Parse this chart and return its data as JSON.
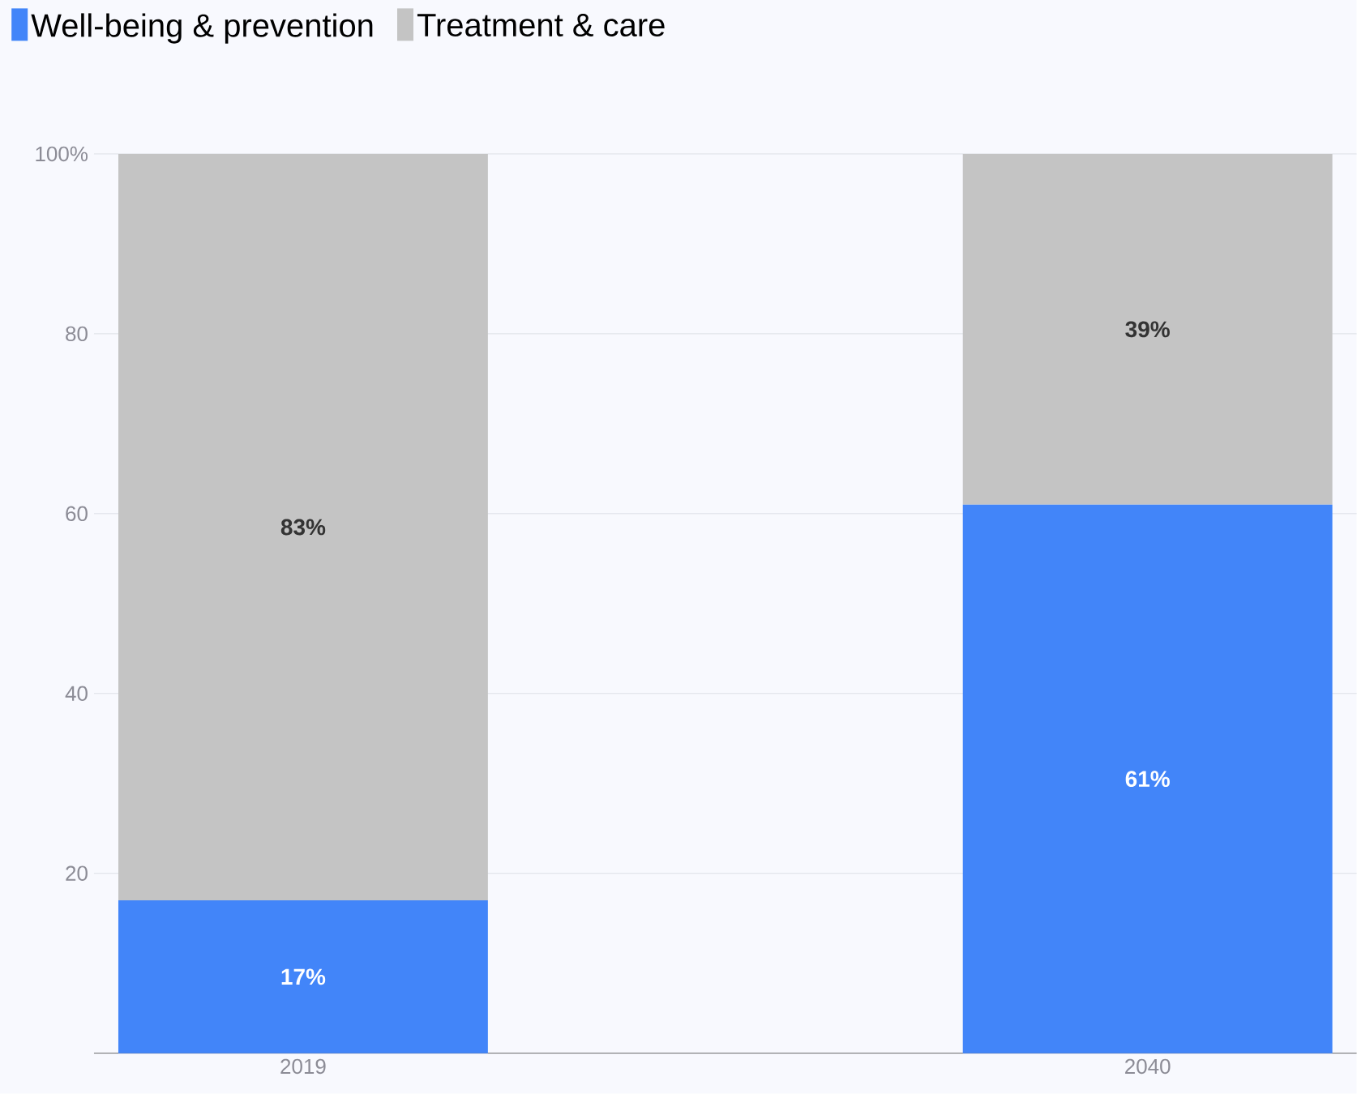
{
  "chart_data": {
    "type": "bar",
    "stacked": true,
    "categories": [
      "2019",
      "2040"
    ],
    "series": [
      {
        "name": "Well-being & prevention",
        "color": "#4285f9",
        "values": [
          17,
          61
        ],
        "value_labels": [
          "17%",
          "61%"
        ]
      },
      {
        "name": "Treatment & care",
        "color": "#c4c4c4",
        "values": [
          83,
          39
        ],
        "value_labels": [
          "83%",
          "39%"
        ]
      }
    ],
    "ylim": [
      0,
      100
    ],
    "yticks": [
      20,
      40,
      60,
      80,
      {
        "value": 100,
        "label": "100%"
      }
    ],
    "grid": "y",
    "legend": "top left"
  }
}
